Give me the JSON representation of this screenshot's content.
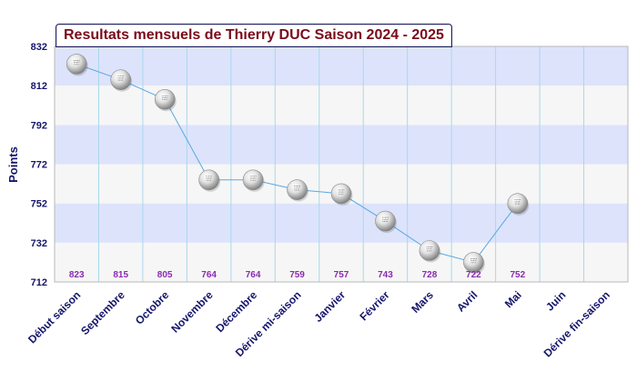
{
  "chart_data": {
    "type": "line",
    "title": "Resultats mensuels de Thierry DUC Saison 2024 - 2025",
    "ylabel": "Points",
    "xlabel": "",
    "ylim": [
      712,
      832
    ],
    "yticks": [
      712,
      732,
      752,
      772,
      792,
      812,
      832
    ],
    "categories": [
      "Début saison",
      "Septembre",
      "Octobre",
      "Novembre",
      "Décembre",
      "Dérive mi-saison",
      "Janvier",
      "Février",
      "Mars",
      "Avril",
      "Mai",
      "Juin",
      "Dérive fin-saison"
    ],
    "values": [
      823,
      815,
      805,
      764,
      764,
      759,
      757,
      743,
      728,
      722,
      752,
      null,
      null
    ],
    "data_labels": [
      "823",
      "815",
      "805",
      "764",
      "764",
      "759",
      "757",
      "743",
      "728",
      "722",
      "752",
      "",
      ""
    ],
    "grid": true,
    "band_colors": [
      "#dde3fb",
      "#f6f6f6"
    ],
    "line_color": "#5aa8e0",
    "vgrid_color": "#a8d8ec"
  }
}
